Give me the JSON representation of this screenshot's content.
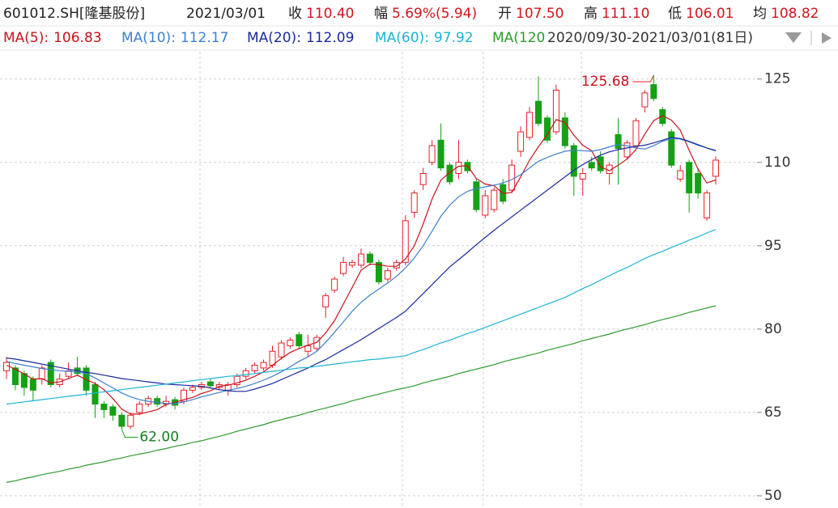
{
  "chart_data": {
    "type": "candlestick",
    "symbol": "601012.SH[隆基股份]",
    "date": "2021/03/01",
    "quote": [
      {
        "label": "收",
        "value": "110.40"
      },
      {
        "label": "幅",
        "value": "5.69%(5.94)"
      },
      {
        "label": "开",
        "value": "107.50"
      },
      {
        "label": "高",
        "value": "111.10"
      },
      {
        "label": "低",
        "value": "106.01"
      },
      {
        "label": "均",
        "value": "108.82"
      }
    ],
    "range": "2020/09/30-2021/03/01(81日)",
    "up_color": "#e8202a",
    "down_color": "#16a016",
    "ylim": [
      47.8,
      130.2
    ],
    "yticks": [
      125,
      110,
      95,
      80,
      65,
      50
    ],
    "grid": true,
    "high_label": "125.68",
    "low_label": "62.00",
    "categories": [
      null,
      null,
      null,
      null,
      null,
      null,
      null,
      null,
      null,
      null,
      null,
      null,
      null,
      null,
      null,
      null,
      null,
      null,
      null,
      null,
      null,
      null,
      null,
      null,
      null,
      null,
      null,
      null,
      null,
      null,
      null,
      null,
      null,
      null,
      null,
      null,
      null,
      null,
      null,
      null,
      null,
      null,
      null,
      null,
      null,
      null,
      null,
      null,
      null,
      null,
      null,
      null,
      null,
      null,
      null,
      null,
      null,
      null,
      null,
      null,
      null,
      null,
      null,
      null,
      null,
      null,
      null,
      null,
      null,
      null,
      null,
      null,
      null,
      null,
      null,
      null,
      null,
      null,
      null,
      null,
      null
    ],
    "open": [
      72.5,
      73,
      72,
      71,
      71,
      74,
      70,
      71.5,
      73,
      73,
      70,
      66.5,
      66,
      64.5,
      62.5,
      65,
      66.5,
      67.5,
      66.5,
      67.3,
      67,
      69,
      69.5,
      70.5,
      69.5,
      69,
      70,
      71.5,
      72.5,
      73,
      73.5,
      75,
      77,
      79,
      76,
      76.5,
      84,
      87,
      90,
      91.5,
      91.5,
      93.5,
      92,
      89,
      91,
      92,
      101,
      106,
      110,
      114,
      109.5,
      108,
      110,
      106.5,
      100.5,
      101.5,
      106,
      105,
      112,
      114.5,
      121,
      118,
      115.5,
      118,
      113,
      107,
      110,
      111,
      108,
      115,
      111,
      113,
      120,
      124,
      119.5,
      115.5,
      107,
      110,
      108,
      100,
      107.5
    ],
    "high": [
      75,
      73.5,
      72.5,
      71.5,
      73.5,
      74.5,
      72,
      74,
      75,
      73.5,
      70.5,
      67,
      66.5,
      65,
      65,
      67,
      68,
      68,
      68,
      67.8,
      69.5,
      70,
      70.5,
      71,
      70.5,
      70.5,
      72,
      73,
      74,
      74.5,
      77,
      78,
      78.5,
      79.5,
      79,
      79,
      86.5,
      89.5,
      93,
      92.5,
      94.5,
      94,
      92.5,
      91,
      92.5,
      100.5,
      105,
      109,
      114,
      117,
      110,
      114,
      110.5,
      107,
      105,
      105.5,
      107,
      110.5,
      116.5,
      120,
      125.5,
      118.5,
      124,
      119,
      113.5,
      109,
      111,
      112,
      110,
      118,
      114,
      118,
      123,
      125.68,
      120,
      116,
      109.5,
      110.5,
      109,
      105,
      111.1
    ],
    "low": [
      71,
      69,
      68,
      67,
      70,
      69.5,
      69.5,
      71,
      71.5,
      68,
      64,
      64,
      63.5,
      62,
      62,
      64.5,
      66,
      66,
      66,
      65.5,
      66.5,
      68.5,
      69,
      69.3,
      69,
      68,
      69.5,
      71,
      72,
      72.5,
      73,
      74.5,
      76.5,
      76.5,
      75,
      76,
      82,
      86.5,
      89.5,
      91,
      91,
      91.5,
      88,
      88.5,
      90.5,
      91.5,
      100,
      105,
      109.5,
      108.5,
      106,
      107,
      108,
      101,
      100,
      101,
      102.5,
      104.5,
      111,
      114,
      116.5,
      113.5,
      115,
      112.5,
      104,
      104,
      108.5,
      108,
      106,
      106,
      110.5,
      112.5,
      119,
      121,
      116.5,
      109,
      106.5,
      101,
      103.5,
      99.5,
      106.01
    ],
    "close": [
      74,
      70,
      69.5,
      69,
      73,
      70,
      71,
      72.5,
      72,
      69,
      66.5,
      65.5,
      64.5,
      62.5,
      64.5,
      66.5,
      67.5,
      66.5,
      67,
      66.3,
      69,
      69.5,
      70,
      69.8,
      70,
      70,
      71.5,
      72.5,
      73.5,
      74,
      76,
      77.5,
      78,
      77,
      77,
      78.5,
      86,
      89,
      92,
      92,
      93.5,
      92,
      88.5,
      90.5,
      92,
      99.5,
      104.5,
      108,
      113,
      109,
      106.5,
      110,
      108.5,
      101.5,
      104,
      105,
      103,
      109.5,
      115.5,
      119,
      117,
      114,
      123,
      113,
      107.5,
      108,
      109,
      108.5,
      109.5,
      112.5,
      113.5,
      117.5,
      122.5,
      121.5,
      117,
      109.5,
      108.5,
      104.5,
      104.5,
      104.5,
      110.4
    ],
    "series": [
      {
        "name": "MA(5):",
        "color": "#c8141e",
        "values": [
          73.5,
          72.8,
          71.9,
          71.0,
          71.1,
          70.3,
          70.5,
          71.1,
          71.7,
          70.9,
          70.2,
          69.1,
          67.5,
          65.6,
          64.7,
          64.7,
          65.1,
          65.5,
          66.4,
          66.8,
          67.3,
          67.7,
          68.4,
          68.9,
          69.7,
          69.9,
          70.3,
          70.8,
          71.5,
          72.3,
          73.5,
          74.7,
          75.8,
          76.5,
          77.1,
          77.6,
          79.3,
          81.5,
          84.5,
          87.5,
          90.6,
          91.7,
          91.6,
          91.3,
          91.3,
          92.6,
          95.0,
          98.9,
          103.4,
          106.8,
          108.2,
          109.3,
          109.4,
          107.1,
          106.1,
          105.8,
          104.4,
          104.6,
          107.4,
          110.4,
          112.8,
          115.0,
          117.7,
          117.2,
          114.9,
          113.1,
          112.1,
          109.2,
          108.5,
          109.5,
          110.6,
          112.3,
          115.1,
          117.5,
          118.4,
          117.6,
          115.8,
          112.2,
          108.8,
          106.3,
          106.83
        ]
      },
      {
        "name": "MA(10):",
        "color": "#3d7fcf",
        "values": [
          74.2,
          73.8,
          73.5,
          73.2,
          72.9,
          72.7,
          72.5,
          72.4,
          72.3,
          72.0,
          71.2,
          70.3,
          69.4,
          68.5,
          67.8,
          67.3,
          67.0,
          66.8,
          66.6,
          66.6,
          66.9,
          67.3,
          67.8,
          68.2,
          68.6,
          69.0,
          69.3,
          69.7,
          70.2,
          70.8,
          71.5,
          72.3,
          73.2,
          74.2,
          75.0,
          76.0,
          77.6,
          79.4,
          81.3,
          83.2,
          84.8,
          86.1,
          87.2,
          88.3,
          89.5,
          91.0,
          92.8,
          95.0,
          97.6,
          100.3,
          102.3,
          103.8,
          104.8,
          105.3,
          105.6,
          105.9,
          106.3,
          106.9,
          107.8,
          109.0,
          110.2,
          110.9,
          111.5,
          112.0,
          112.2,
          112.1,
          112.0,
          112.3,
          112.8,
          113.2,
          113.0,
          112.6,
          112.4,
          113.0,
          113.8,
          114.3,
          114.2,
          113.7,
          113.1,
          112.6,
          112.17
        ]
      },
      {
        "name": "MA(20):",
        "color": "#1a2a9e",
        "values": [
          74.8,
          74.6,
          74.3,
          74.0,
          73.7,
          73.4,
          73.1,
          72.8,
          72.5,
          72.2,
          72.0,
          71.7,
          71.4,
          71.1,
          70.9,
          70.7,
          70.5,
          70.3,
          70.1,
          70.0,
          69.9,
          69.8,
          69.7,
          69.4,
          69.1,
          68.9,
          68.8,
          68.8,
          69.2,
          69.7,
          70.2,
          70.9,
          71.6,
          72.3,
          73.0,
          73.8,
          74.5,
          75.4,
          76.3,
          77.2,
          78.1,
          79.1,
          80.1,
          81.1,
          82.1,
          83.2,
          84.8,
          86.4,
          88.0,
          89.6,
          91.2,
          92.5,
          93.8,
          95.2,
          96.5,
          97.8,
          99.0,
          100.2,
          101.4,
          102.6,
          103.8,
          105.0,
          106.2,
          107.4,
          108.6,
          109.6,
          110.5,
          111.3,
          111.9,
          112.3,
          112.6,
          112.9,
          113.1,
          113.5,
          114.0,
          114.5,
          114.3,
          113.8,
          113.2,
          112.6,
          112.09
        ]
      },
      {
        "name": "MA(60):",
        "color": "#1cb4d6",
        "values": [
          66.5,
          66.7,
          66.9,
          67.1,
          67.3,
          67.5,
          67.7,
          67.9,
          68.1,
          68.3,
          68.5,
          68.7,
          68.9,
          69.1,
          69.3,
          69.5,
          69.7,
          69.9,
          70.1,
          70.3,
          70.5,
          70.7,
          70.9,
          71.1,
          71.3,
          71.5,
          71.6,
          71.8,
          72.0,
          72.2,
          72.4,
          72.6,
          72.8,
          73.0,
          73.1,
          73.3,
          73.5,
          73.7,
          73.9,
          74.1,
          74.3,
          74.5,
          74.6,
          74.8,
          75.0,
          75.2,
          75.8,
          76.3,
          76.9,
          77.5,
          78.0,
          78.6,
          79.2,
          79.7,
          80.3,
          80.9,
          81.5,
          82.1,
          82.7,
          83.3,
          83.9,
          84.5,
          85.1,
          85.7,
          86.5,
          87.3,
          88.0,
          88.8,
          89.6,
          90.4,
          91.1,
          91.9,
          92.7,
          93.4,
          94.0,
          94.7,
          95.3,
          96.0,
          96.6,
          97.3,
          97.92
        ]
      },
      {
        "name": "MA(120",
        "color": "#2e9a2e",
        "values": [
          52.4,
          52.7,
          53.1,
          53.4,
          53.8,
          54.1,
          54.4,
          54.8,
          55.1,
          55.5,
          55.8,
          56.1,
          56.5,
          56.8,
          57.2,
          57.5,
          57.8,
          58.2,
          58.5,
          58.9,
          59.2,
          59.6,
          59.9,
          60.3,
          60.7,
          61.1,
          61.6,
          62.0,
          62.4,
          62.8,
          63.3,
          63.7,
          64.1,
          64.5,
          65.0,
          65.4,
          65.8,
          66.2,
          66.6,
          67.1,
          67.5,
          67.9,
          68.3,
          68.7,
          69.1,
          69.4,
          69.8,
          70.3,
          70.7,
          71.1,
          71.5,
          72.0,
          72.4,
          72.8,
          73.2,
          73.6,
          74.1,
          74.5,
          74.9,
          75.3,
          75.7,
          76.2,
          76.6,
          77.0,
          77.4,
          77.9,
          78.3,
          78.7,
          79.1,
          79.6,
          80.0,
          80.4,
          80.8,
          81.3,
          81.7,
          82.1,
          82.5,
          83.0,
          83.4,
          83.8,
          84.2
        ]
      }
    ]
  }
}
